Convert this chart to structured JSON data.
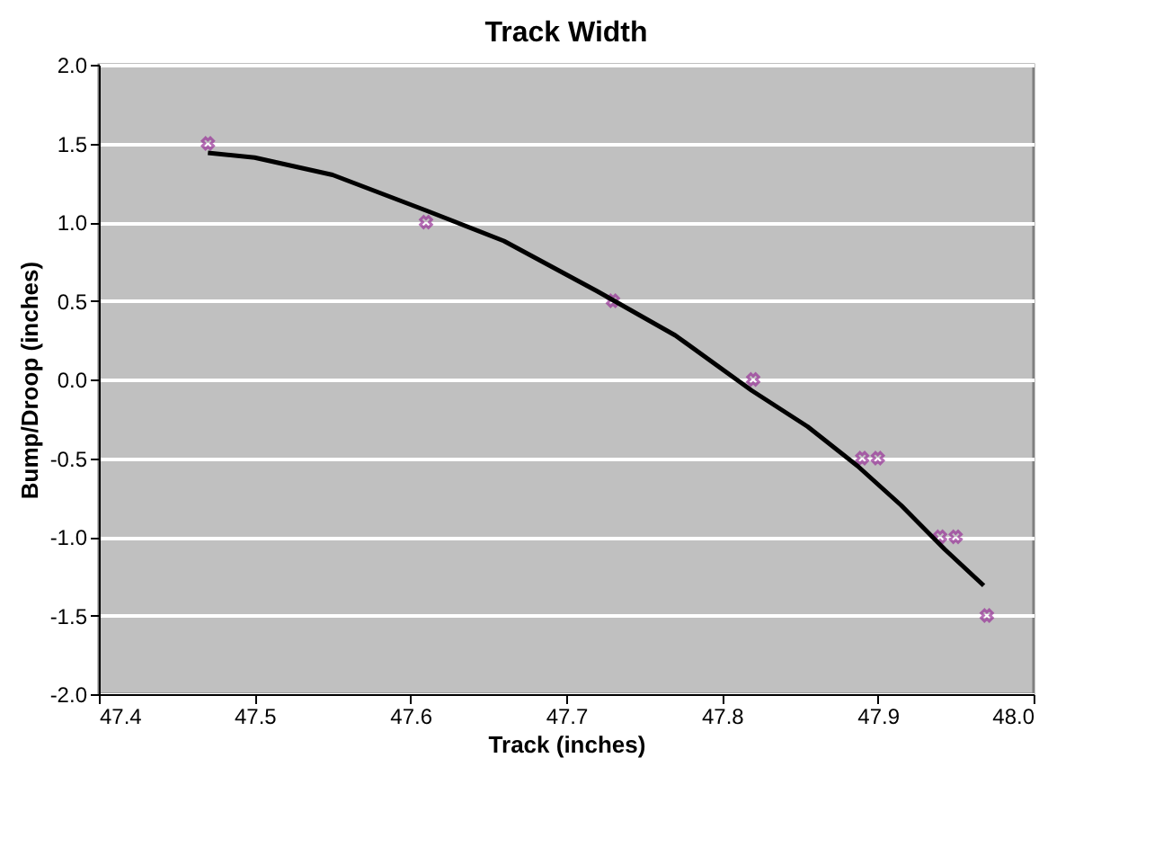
{
  "chart_data": {
    "type": "scatter",
    "title": "Track Width",
    "xlabel": "Track (inches)",
    "ylabel": "Bump/Droop (inches)",
    "xlim": [
      47.4,
      48.0
    ],
    "xticks": [
      {
        "value": 47.4,
        "label": "47.4"
      },
      {
        "value": 47.5,
        "label": "47.5"
      },
      {
        "value": 47.6,
        "label": "47.6"
      },
      {
        "value": 47.7,
        "label": "47.7"
      },
      {
        "value": 47.8,
        "label": "47.8"
      },
      {
        "value": 47.9,
        "label": "47.9"
      },
      {
        "value": 48.0,
        "label": "48.0"
      }
    ],
    "ylim": [
      -2.0,
      2.0
    ],
    "yticks": [
      {
        "value": -2.0,
        "label": "-2.0"
      },
      {
        "value": -1.5,
        "label": "-1.5"
      },
      {
        "value": -1.0,
        "label": "-1.0"
      },
      {
        "value": -0.5,
        "label": "-0.5"
      },
      {
        "value": 0.0,
        "label": "0.0"
      },
      {
        "value": 0.5,
        "label": "0.5"
      },
      {
        "value": 1.0,
        "label": "1.0"
      },
      {
        "value": 1.5,
        "label": "1.5"
      },
      {
        "value": 2.0,
        "label": "2.0"
      }
    ],
    "grid": "y",
    "legend": false,
    "series": [
      {
        "color": "#993399",
        "marker": "cross",
        "x": [
          47.47,
          47.61,
          47.73,
          47.82,
          47.89,
          47.9,
          47.94,
          47.95,
          47.97
        ],
        "values": [
          1.5,
          1.0,
          0.5,
          0.0,
          -0.5,
          -0.5,
          -1.0,
          -1.0,
          -1.5
        ]
      },
      {
        "type": "line",
        "color": "#000000",
        "line_style": "solid",
        "x": [
          47.47,
          47.5,
          47.55,
          47.611,
          47.66,
          47.72,
          47.77,
          47.819,
          47.855,
          47.887,
          47.915,
          47.943,
          47.968
        ],
        "values": [
          1.44,
          1.41,
          1.3,
          1.07,
          0.88,
          0.56,
          0.28,
          -0.07,
          -0.3,
          -0.55,
          -0.8,
          -1.08,
          -1.31
        ]
      }
    ]
  }
}
